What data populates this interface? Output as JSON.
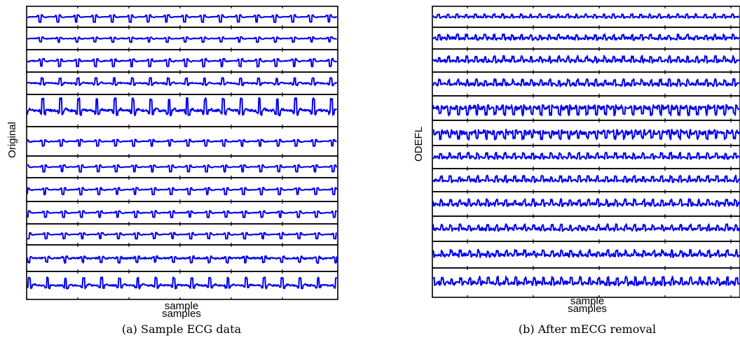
{
  "colors": {
    "trace": "#0000ee",
    "frame": "#000000",
    "background": "#ffffff"
  },
  "chart_data": [
    {
      "type": "line",
      "title": "",
      "xlabel": "samples",
      "ylabel": "Original",
      "caption": "(a) Sample ECG data",
      "xlabel_overlap_stub": "sample",
      "grid": false,
      "tick_labels": "none",
      "channels": 12,
      "series_style": "stacked multichannel ECG traces, one per row",
      "beats_per_channel": 17
    },
    {
      "type": "line",
      "title": "",
      "xlabel": "samples",
      "ylabel": "ODEFL",
      "caption": "(b) After mECG removal",
      "xlabel_overlap_stub": "sample",
      "grid": false,
      "tick_labels": "none",
      "channels": 12,
      "series_style": "stacked multichannel residual traces after maternal ECG removal, one per row",
      "beats_per_channel": 33
    }
  ]
}
